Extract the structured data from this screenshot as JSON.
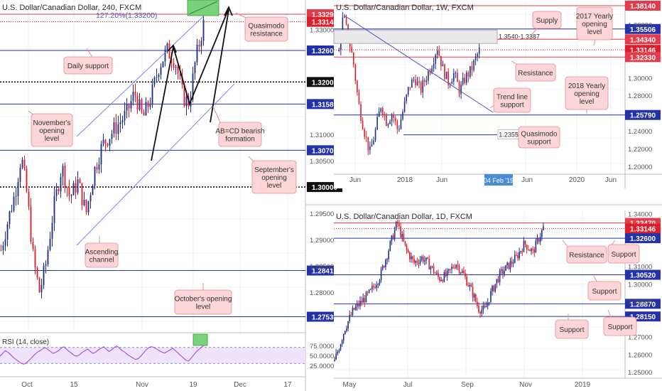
{
  "colors": {
    "up": "#1b2f8f",
    "down": "#e01e2b",
    "level": "#2332a8",
    "level_red": "#e33b4a",
    "channel": "#7b86e0",
    "grid": "#eef0f4",
    "note_bg": "#fbd5d7",
    "note_border": "#e38d93",
    "zone_green": "#78d27a",
    "zone_grey": "#e9e9ec",
    "rsi_fill": "#efe3fb"
  },
  "chart_data": [
    {
      "id": "h4",
      "type": "candlestick",
      "title": "U.S. Dollar/Canadian Dollar, 240, FXCM",
      "ylim": [
        1.2728,
        1.3348
      ],
      "x_ticks": [
        "Oct",
        "15",
        "Nov",
        "19",
        "Dec",
        "17"
      ],
      "price_ticks": [
        "1.29500",
        "1.29000",
        "1.28500",
        "1.28000",
        "1.31000",
        "1.30500",
        "1.33000"
      ],
      "fib_label": "127.20%(1.33200)",
      "levels": [
        {
          "label": "1.33290",
          "value": 1.3329,
          "color": "red"
        },
        {
          "label": "1.33146",
          "value": 1.33146,
          "color": "current"
        },
        {
          "label": "1.32600",
          "value": 1.326,
          "color": "blue"
        },
        {
          "label": "1.32000",
          "value": 1.32,
          "color": "black",
          "dotted": true
        },
        {
          "label": "1.31580",
          "value": 1.3158,
          "color": "blue"
        },
        {
          "label": "1.30700",
          "value": 1.307,
          "color": "blue"
        },
        {
          "label": "1.30000",
          "value": 1.3,
          "color": "black",
          "dotted": true
        },
        {
          "label": "1.28410",
          "value": 1.2841,
          "color": "blue"
        },
        {
          "label": "1.27530",
          "value": 1.2753,
          "color": "blue"
        }
      ],
      "annotations": [
        "Daily support",
        "Quasimodo resistance",
        "November's opening level",
        "AB=CD bearish formation",
        "September's opening level",
        "Ascending channel",
        "October's opening level"
      ],
      "rsi": {
        "label": "RSI (14, close)",
        "ticks": [
          "75.0000",
          "50.0000",
          "25.0000"
        ],
        "values": [
          48,
          55,
          62,
          58,
          52,
          45,
          40,
          35,
          30,
          28,
          32,
          38,
          45,
          52,
          58,
          62,
          66,
          70,
          65,
          60,
          55,
          58,
          62,
          68,
          72,
          66,
          60,
          55,
          50,
          48,
          52,
          58,
          62,
          66,
          60,
          55,
          58,
          64,
          68,
          72,
          66,
          60,
          64,
          70,
          74,
          68,
          62,
          58,
          52,
          48,
          44,
          40,
          42,
          48,
          56,
          64,
          70,
          72,
          70,
          66,
          62,
          58,
          56,
          60,
          64,
          68,
          62,
          56,
          50,
          44,
          38,
          36,
          44,
          52,
          60,
          66,
          72,
          76
        ]
      }
    },
    {
      "id": "weekly",
      "type": "candlestick",
      "title": "U.S. Dollar/Canadian Dollar, 1W, FXCM",
      "ylim": [
        1.195,
        1.383
      ],
      "x_ticks": [
        "Jun",
        "2018",
        "Jun",
        "Jun",
        "2020",
        "Jun"
      ],
      "date_label": "04 Feb '19",
      "price_ticks": [
        "1.36000",
        "1.30000",
        "1.28000",
        "1.24000",
        "1.22000",
        "1.20000"
      ],
      "supply_label": "1.3540-1.3387",
      "quasimodo_label": "1.2355",
      "levels": [
        {
          "label": "1.38140",
          "value": 1.3814,
          "color": "red"
        },
        {
          "label": "1.35506",
          "value": 1.35506,
          "color": "blue"
        },
        {
          "label": "1.34340",
          "value": 1.3434,
          "color": "red"
        },
        {
          "label": "1.33146",
          "value": 1.33146,
          "color": "current"
        },
        {
          "label": "1.32330",
          "value": 1.3233,
          "color": "red"
        },
        {
          "label": "1.25790",
          "value": 1.2579,
          "color": "blue"
        }
      ],
      "annotations": [
        "Supply",
        "2017 Yearly opening level",
        "Resistance",
        "2018 Yearly opening level",
        "Trend line support",
        "Quasimodo support"
      ]
    },
    {
      "id": "daily",
      "type": "candlestick",
      "title": "U.S. Dollar/Canadian Dollar, 1D, FXCM",
      "ylim": [
        1.248,
        1.341
      ],
      "x_ticks": [
        "May",
        "Jul",
        "Sep",
        "Nov",
        "2019"
      ],
      "price_ticks": [
        "1.34000",
        "1.31000",
        "1.30000",
        "1.29000",
        "1.27000",
        "1.26000",
        "1.25000"
      ],
      "levels": [
        {
          "label": "1.33470",
          "value": 1.3347,
          "color": "red"
        },
        {
          "label": "1.33146",
          "value": 1.33146,
          "color": "current"
        },
        {
          "label": "1.32600",
          "value": 1.326,
          "color": "blue"
        },
        {
          "label": "1.30520",
          "value": 1.3052,
          "color": "blue"
        },
        {
          "label": "1.28870",
          "value": 1.2887,
          "color": "blue"
        },
        {
          "label": "1.28150",
          "value": 1.2815,
          "color": "blue"
        }
      ],
      "annotations": [
        "Resistance",
        "Support",
        "Support",
        "Support",
        "Support"
      ]
    }
  ]
}
